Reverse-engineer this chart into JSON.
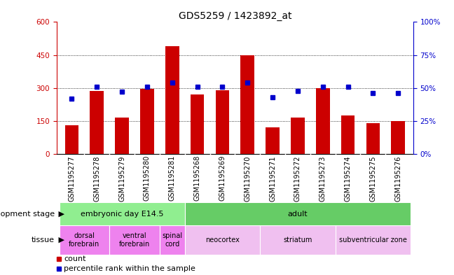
{
  "title": "GDS5259 / 1423892_at",
  "samples": [
    "GSM1195277",
    "GSM1195278",
    "GSM1195279",
    "GSM1195280",
    "GSM1195281",
    "GSM1195268",
    "GSM1195269",
    "GSM1195270",
    "GSM1195271",
    "GSM1195272",
    "GSM1195273",
    "GSM1195274",
    "GSM1195275",
    "GSM1195276"
  ],
  "counts": [
    130,
    285,
    165,
    295,
    490,
    270,
    290,
    450,
    120,
    165,
    300,
    175,
    140,
    150
  ],
  "percentiles": [
    42,
    51,
    47,
    51,
    54,
    51,
    51,
    54,
    43,
    48,
    51,
    51,
    46,
    46
  ],
  "bar_color": "#cc0000",
  "dot_color": "#0000cc",
  "ylim_left": [
    0,
    600
  ],
  "ylim_right": [
    0,
    100
  ],
  "yticks_left": [
    0,
    150,
    300,
    450,
    600
  ],
  "yticks_right": [
    0,
    25,
    50,
    75,
    100
  ],
  "ytick_labels_left": [
    "0",
    "150",
    "300",
    "450",
    "600"
  ],
  "ytick_labels_right": [
    "0%",
    "25%",
    "50%",
    "75%",
    "100%"
  ],
  "dev_stage_groups": [
    {
      "label": "embryonic day E14.5",
      "start": 0,
      "end": 5,
      "color": "#90ee90"
    },
    {
      "label": "adult",
      "start": 5,
      "end": 14,
      "color": "#66cc66"
    }
  ],
  "tissue_groups": [
    {
      "label": "dorsal\nforebrain",
      "start": 0,
      "end": 2,
      "color": "#ee82ee"
    },
    {
      "label": "ventral\nforebrain",
      "start": 2,
      "end": 4,
      "color": "#ee82ee"
    },
    {
      "label": "spinal\ncord",
      "start": 4,
      "end": 5,
      "color": "#ee82ee"
    },
    {
      "label": "neocortex",
      "start": 5,
      "end": 8,
      "color": "#f0c0f0"
    },
    {
      "label": "striatum",
      "start": 8,
      "end": 11,
      "color": "#f0c0f0"
    },
    {
      "label": "subventricular zone",
      "start": 11,
      "end": 14,
      "color": "#f0c0f0"
    }
  ],
  "xtick_bg_color": "#c8c8c8",
  "plot_bg": "#ffffff",
  "legend_count_color": "#cc0000",
  "legend_pct_color": "#0000cc",
  "font_size_title": 10,
  "font_size_ticks": 7.5,
  "font_size_labels": 8,
  "font_size_annotation": 8,
  "bar_width": 0.55
}
